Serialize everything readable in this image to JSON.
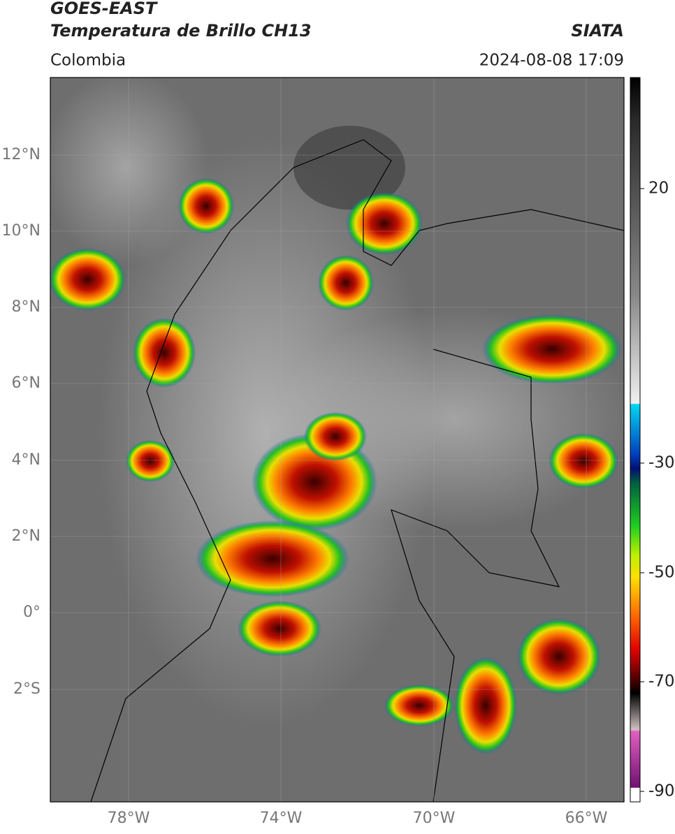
{
  "header": {
    "title": "GOES-EAST",
    "subtitle": "Temperatura de Brillo CH13",
    "source": "SIATA",
    "region": "Colombia",
    "datetime": "2024-08-08 17:09"
  },
  "map": {
    "lat_labels": [
      "12°N",
      "10°N",
      "8°N",
      "6°N",
      "4°N",
      "2°N",
      "0°",
      "2°S"
    ],
    "lon_labels": [
      "78°W",
      "74°W",
      "70°W",
      "66°W"
    ]
  },
  "colorbar": {
    "tick_labels": [
      "20",
      "-30",
      "-50",
      "-70",
      "-90"
    ]
  }
}
